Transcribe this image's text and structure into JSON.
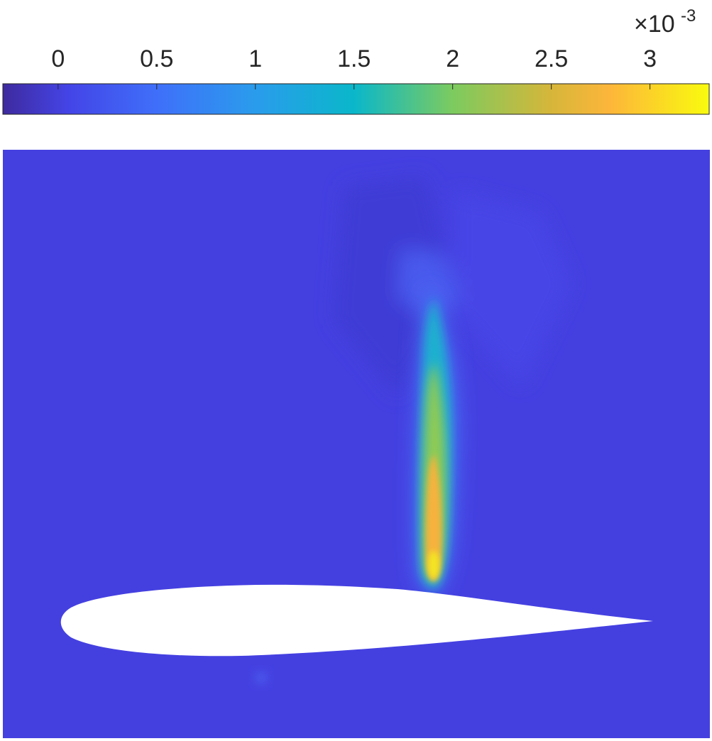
{
  "chart_data": {
    "type": "heatmap",
    "title": "",
    "xlabel": "",
    "ylabel": "",
    "colorbar": {
      "orientation": "horizontal",
      "location": "top",
      "colormap": "parula",
      "range": [
        -0.00028,
        0.0033
      ],
      "scale_exponent": "×10",
      "scale_exponent_power": "-3",
      "ticks": [
        {
          "value": 0,
          "label": "0"
        },
        {
          "value": 0.0005,
          "label": "0.5"
        },
        {
          "value": 0.001,
          "label": "1"
        },
        {
          "value": 0.0015,
          "label": "1.5"
        },
        {
          "value": 0.002,
          "label": "2"
        },
        {
          "value": 0.0025,
          "label": "2.5"
        },
        {
          "value": 0.003,
          "label": "3"
        }
      ],
      "stops": [
        {
          "value": -0.00028,
          "color": "#3e2a9e"
        },
        {
          "value": 5e-05,
          "color": "#4444e6"
        },
        {
          "value": 0.0005,
          "color": "#3f6ffa"
        },
        {
          "value": 0.001,
          "color": "#2a9cec"
        },
        {
          "value": 0.0015,
          "color": "#0ab7ca"
        },
        {
          "value": 0.002,
          "color": "#7ccb5f"
        },
        {
          "value": 0.0025,
          "color": "#d6b63a"
        },
        {
          "value": 0.0028,
          "color": "#fdb63a"
        },
        {
          "value": 0.0033,
          "color": "#f9fb0e"
        }
      ]
    },
    "field": {
      "description_background_value": 5e-05,
      "features": [
        {
          "name": "plume",
          "peak_value": 0.0032
        },
        {
          "name": "upper-wake",
          "peak_value": 0.0004
        }
      ]
    },
    "body": {
      "shape": "airfoil",
      "color": "#ffffff"
    },
    "grid": false,
    "legend": "none"
  }
}
